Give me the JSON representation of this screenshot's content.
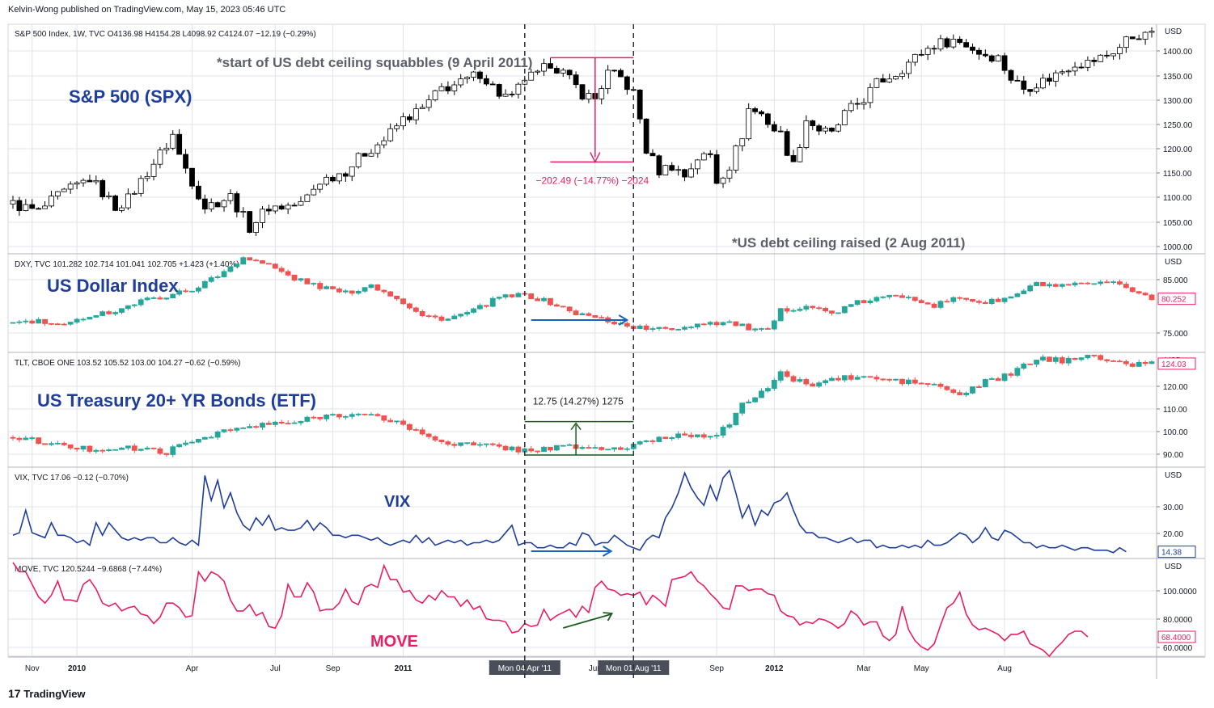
{
  "header": {
    "attribution": "Kelvin-Wong published on TradingView.com, May 15, 2023 05:46 UTC"
  },
  "footer": {
    "brand": "TradingView",
    "logo_mark": "17"
  },
  "chart_data": [
    {
      "type": "candlestick",
      "symbol_line": "S&P 500 Index, 1W, TVC  O4136.98  H4154.28  L4098.92  C4124.07  −12.19 (−0.29%)",
      "title": "S&P 500 (SPX)",
      "currency": "USD",
      "y_ticks": [
        "1400.00",
        "1350.00",
        "1300.00",
        "1250.00",
        "1200.00",
        "1150.00",
        "1100.00",
        "1050.00",
        "1000.00"
      ],
      "ylim": [
        990,
        1435
      ],
      "anchors": [
        [
          0,
          1085
        ],
        [
          4,
          1070
        ],
        [
          7,
          1100
        ],
        [
          12,
          1135
        ],
        [
          16,
          1080
        ],
        [
          18,
          1095
        ],
        [
          24,
          1200
        ],
        [
          25,
          1220
        ],
        [
          26,
          1180
        ],
        [
          30,
          1080
        ],
        [
          34,
          1100
        ],
        [
          37,
          1040
        ],
        [
          40,
          1080
        ],
        [
          42,
          1080
        ],
        [
          45,
          1085
        ],
        [
          48,
          1130
        ],
        [
          52,
          1150
        ],
        [
          55,
          1185
        ],
        [
          58,
          1210
        ],
        [
          61,
          1250
        ],
        [
          64,
          1270
        ],
        [
          67,
          1310
        ],
        [
          70,
          1320
        ],
        [
          73,
          1340
        ],
        [
          76,
          1300
        ],
        [
          78,
          1290
        ],
        [
          80,
          1330
        ],
        [
          82,
          1335
        ],
        [
          84,
          1360
        ],
        [
          86,
          1340
        ],
        [
          89,
          1300
        ],
        [
          91,
          1290
        ],
        [
          93,
          1340
        ],
        [
          95,
          1330
        ],
        [
          97,
          1300
        ],
        [
          98,
          1250
        ],
        [
          99,
          1190
        ],
        [
          101,
          1150
        ],
        [
          103,
          1160
        ],
        [
          105,
          1140
        ],
        [
          107,
          1175
        ],
        [
          109,
          1180
        ],
        [
          110,
          1130
        ],
        [
          112,
          1160
        ],
        [
          114,
          1220
        ],
        [
          115,
          1270
        ],
        [
          117,
          1260
        ],
        [
          119,
          1230
        ],
        [
          120,
          1220
        ],
        [
          122,
          1160
        ],
        [
          124,
          1250
        ],
        [
          126,
          1230
        ],
        [
          128,
          1220
        ],
        [
          130,
          1260
        ],
        [
          133,
          1290
        ],
        [
          135,
          1320
        ],
        [
          138,
          1340
        ],
        [
          140,
          1360
        ],
        [
          142,
          1380
        ],
        [
          144,
          1395
        ],
        [
          147,
          1405
        ],
        [
          149,
          1395
        ],
        [
          151,
          1380
        ],
        [
          154,
          1370
        ],
        [
          156,
          1330
        ],
        [
          158,
          1310
        ],
        [
          160,
          1320
        ],
        [
          162,
          1330
        ],
        [
          164,
          1345
        ],
        [
          166,
          1360
        ],
        [
          168,
          1360
        ],
        [
          171,
          1375
        ],
        [
          173,
          1390
        ],
        [
          174,
          1405
        ],
        [
          176,
          1415
        ],
        [
          177,
          1410
        ],
        [
          178,
          1425
        ]
      ],
      "annotations": {
        "start_note": "*start of US debt ceiling squabbles (9 April 2011)",
        "end_note": "*US debt ceiling raised (2 Aug 2011)",
        "measure_label": "−202.49 (−14.77%) −2024",
        "measure_from": 1370,
        "measure_to": 1167
      }
    },
    {
      "type": "candlestick",
      "symbol_line": "DXY, TVC  101.282  102.714  101.041  102.705  +1.423  (+1.40%)",
      "title": "US Dollar Index",
      "currency": "USD",
      "y_ticks": [
        "85.000",
        "75.000"
      ],
      "last_value": "80.252",
      "ylim": [
        70.4,
        88.5
      ],
      "anchors": [
        [
          0,
          75.8
        ],
        [
          4,
          76.0
        ],
        [
          8,
          75.1
        ],
        [
          12,
          77.2
        ],
        [
          16,
          78.0
        ],
        [
          20,
          79.8
        ],
        [
          24,
          80.8
        ],
        [
          28,
          82.0
        ],
        [
          32,
          84.5
        ],
        [
          36,
          88.0
        ],
        [
          40,
          86.5
        ],
        [
          44,
          84.0
        ],
        [
          48,
          82.5
        ],
        [
          52,
          81.3
        ],
        [
          56,
          82.8
        ],
        [
          60,
          80.5
        ],
        [
          64,
          77.0
        ],
        [
          68,
          76.5
        ],
        [
          72,
          78.0
        ],
        [
          76,
          80.5
        ],
        [
          80,
          81.0
        ],
        [
          84,
          79.5
        ],
        [
          88,
          77.5
        ],
        [
          92,
          76.5
        ],
        [
          96,
          75.2
        ],
        [
          100,
          74.5
        ],
        [
          104,
          74.8
        ],
        [
          108,
          75.8
        ],
        [
          112,
          75.8
        ],
        [
          116,
          74.4
        ],
        [
          118,
          74.2
        ],
        [
          120,
          78.0
        ],
        [
          124,
          79.0
        ],
        [
          128,
          77.5
        ],
        [
          132,
          79.5
        ],
        [
          136,
          80.5
        ],
        [
          140,
          80.8
        ],
        [
          144,
          79.0
        ],
        [
          148,
          80.5
        ],
        [
          152,
          79.5
        ],
        [
          156,
          80.5
        ],
        [
          160,
          83.0
        ],
        [
          164,
          82.5
        ],
        [
          168,
          83.0
        ],
        [
          172,
          83.0
        ],
        [
          176,
          81.5
        ],
        [
          178,
          80.25
        ]
      ],
      "annotations": {
        "sideways_arrow": true
      }
    },
    {
      "type": "candlestick",
      "symbol_line": "TLT, CBOE ONE  103.52  105.52  103.00  104.27  −0.62  (−0.59%)",
      "title": "US Treasury 20+ YR Bonds (ETF)",
      "currency": "USD",
      "y_ticks": [
        "120.00",
        "110.00",
        "100.00",
        "90.00"
      ],
      "last_value": "124.03",
      "ylim": [
        85,
        128
      ],
      "anchors": [
        [
          0,
          96
        ],
        [
          4,
          94.5
        ],
        [
          8,
          92.5
        ],
        [
          12,
          91.5
        ],
        [
          16,
          92.0
        ],
        [
          20,
          91.5
        ],
        [
          24,
          90.5
        ],
        [
          28,
          94.5
        ],
        [
          32,
          98
        ],
        [
          36,
          99.5
        ],
        [
          40,
          101
        ],
        [
          44,
          101.5
        ],
        [
          48,
          104
        ],
        [
          52,
          105
        ],
        [
          56,
          104
        ],
        [
          60,
          102
        ],
        [
          64,
          97
        ],
        [
          68,
          94
        ],
        [
          72,
          93
        ],
        [
          76,
          92.5
        ],
        [
          80,
          91
        ],
        [
          84,
          92
        ],
        [
          88,
          92.5
        ],
        [
          92,
          91.5
        ],
        [
          96,
          92.0
        ],
        [
          100,
          95
        ],
        [
          104,
          97
        ],
        [
          108,
          97
        ],
        [
          110,
          97.5
        ],
        [
          112,
          101
        ],
        [
          114,
          108
        ],
        [
          116,
          112
        ],
        [
          118,
          115
        ],
        [
          120,
          120
        ],
        [
          122,
          118
        ],
        [
          124,
          116
        ],
        [
          128,
          118
        ],
        [
          132,
          119
        ],
        [
          136,
          118
        ],
        [
          140,
          117
        ],
        [
          144,
          116
        ],
        [
          148,
          112
        ],
        [
          152,
          117
        ],
        [
          156,
          120
        ],
        [
          160,
          126
        ],
        [
          164,
          125
        ],
        [
          168,
          128
        ],
        [
          172,
          124
        ],
        [
          176,
          124
        ],
        [
          178,
          124.03
        ]
      ],
      "annotations": {
        "measure_label": "12.75 (14.27%) 1275",
        "measure_from": 89.3,
        "measure_to": 102.0
      }
    },
    {
      "type": "line",
      "symbol_line": "VIX, TVC  17.06  −0.12  (−0.70%)",
      "title": "VIX",
      "currency": "USD",
      "y_ticks": [
        "30.00",
        "20.00"
      ],
      "last_value": "14.38",
      "ylim": [
        12,
        48
      ],
      "values": [
        21,
        22,
        31,
        22,
        21,
        20,
        26,
        21,
        21,
        20,
        18,
        19,
        17,
        26,
        21,
        26,
        23,
        20,
        19,
        20,
        19,
        20,
        20,
        18,
        18,
        20,
        18,
        17,
        19,
        17,
        45,
        35,
        43,
        32,
        38,
        30,
        25,
        23,
        28,
        25,
        29,
        23,
        24,
        23,
        23,
        24,
        27,
        23,
        26,
        24,
        21,
        21,
        20,
        21,
        21,
        20,
        19,
        20,
        18,
        17,
        18,
        19,
        18,
        21,
        18,
        20,
        17,
        18,
        19,
        18,
        19,
        17,
        18,
        18,
        19,
        18,
        19,
        22,
        25,
        17,
        18,
        18,
        16,
        16,
        17,
        16,
        16,
        18,
        17,
        22,
        21,
        17,
        18,
        18,
        21,
        19,
        17,
        16,
        15,
        19,
        21,
        20,
        28,
        32,
        38,
        46,
        40,
        36,
        33,
        41,
        35,
        44,
        47,
        38,
        28,
        33,
        25,
        31,
        29,
        34,
        35,
        38,
        31,
        25,
        22,
        22,
        20,
        20,
        19,
        18,
        19,
        20,
        18,
        19,
        19,
        16,
        17,
        16,
        16,
        17,
        16,
        17,
        16,
        19,
        17,
        17,
        18,
        20,
        22,
        21,
        18,
        20,
        24,
        20,
        19,
        23,
        22,
        20,
        18,
        18,
        16,
        17,
        16,
        16,
        17,
        16,
        15,
        16,
        16,
        15,
        15,
        15,
        14,
        16,
        14.38
      ]
    },
    {
      "type": "line",
      "symbol_line": "MOVE, TVC  120.5244  −9.6868  (−7.44%)",
      "title": "MOVE",
      "currency": "USD",
      "y_ticks": [
        "100.0000",
        "80.0000",
        "60.0000"
      ],
      "last_value": "68.4000",
      "ylim": [
        56,
        118
      ],
      "values": [
        116,
        110,
        110,
        102,
        94,
        90,
        95,
        104,
        92,
        92,
        91,
        102,
        105,
        99,
        90,
        88,
        90,
        85,
        87,
        88,
        83,
        82,
        77,
        81,
        90,
        90,
        87,
        81,
        82,
        110,
        104,
        110,
        108,
        104,
        92,
        85,
        85,
        89,
        82,
        84,
        75,
        74,
        82,
        102,
        94,
        94,
        103,
        97,
        85,
        86,
        86,
        90,
        99,
        91,
        89,
        100,
        102,
        100,
        114,
        105,
        105,
        97,
        98,
        92,
        90,
        95,
        92,
        98,
        94,
        94,
        88,
        92,
        86,
        88,
        80,
        79,
        79,
        78,
        71,
        72,
        77,
        75,
        76,
        86,
        79,
        82,
        84,
        86,
        81,
        88,
        84,
        100,
        104,
        99,
        98,
        95,
        96,
        95,
        97,
        89,
        95,
        92,
        88,
        105,
        106,
        107,
        110,
        104,
        101,
        96,
        92,
        87,
        86,
        101,
        101,
        98,
        99,
        99,
        96,
        95,
        85,
        82,
        81,
        76,
        78,
        77,
        80,
        79,
        77,
        74,
        77,
        85,
        82,
        76,
        78,
        78,
        69,
        66,
        70,
        88,
        73,
        66,
        62,
        60,
        64,
        76,
        87,
        90,
        97,
        83,
        76,
        73,
        74,
        72,
        70,
        66,
        70,
        70,
        72,
        64,
        62,
        60,
        56,
        61,
        65,
        70,
        72,
        72,
        68.4
      ]
    }
  ],
  "x_axis": {
    "ticks": [
      {
        "label": "Nov",
        "i": 3
      },
      {
        "label": "2010",
        "i": 10,
        "bold": true
      },
      {
        "label": "Apr",
        "i": 28
      },
      {
        "label": "Jul",
        "i": 41
      },
      {
        "label": "Sep",
        "i": 50
      },
      {
        "label": "2011",
        "i": 61,
        "bold": true
      },
      {
        "label": "Jun",
        "i": 91
      },
      {
        "label": "Sep",
        "i": 110
      },
      {
        "label": "2012",
        "i": 119,
        "bold": true
      },
      {
        "label": "Mar",
        "i": 133
      },
      {
        "label": "May",
        "i": 142
      },
      {
        "label": "Aug",
        "i": 155
      }
    ],
    "markers": [
      {
        "label": "Mon 04 Apr '11",
        "i": 80
      },
      {
        "label": "Mon 01 Aug '11",
        "i": 97
      }
    ]
  },
  "colors": {
    "up": "#26a69a",
    "down": "#ef5350",
    "spx_up": "#ffffff",
    "spx_down": "#000000",
    "grid": "#e0e3eb",
    "axis_text": "#131722",
    "title_blue": "#1f3d9a",
    "note_grey": "#5d606b",
    "pink": "#e91e63",
    "vix_line": "#1f3d9a",
    "move_line": "#e91e63",
    "green_arrow": "#1b5e20",
    "marker_bg": "#4a4e59"
  }
}
